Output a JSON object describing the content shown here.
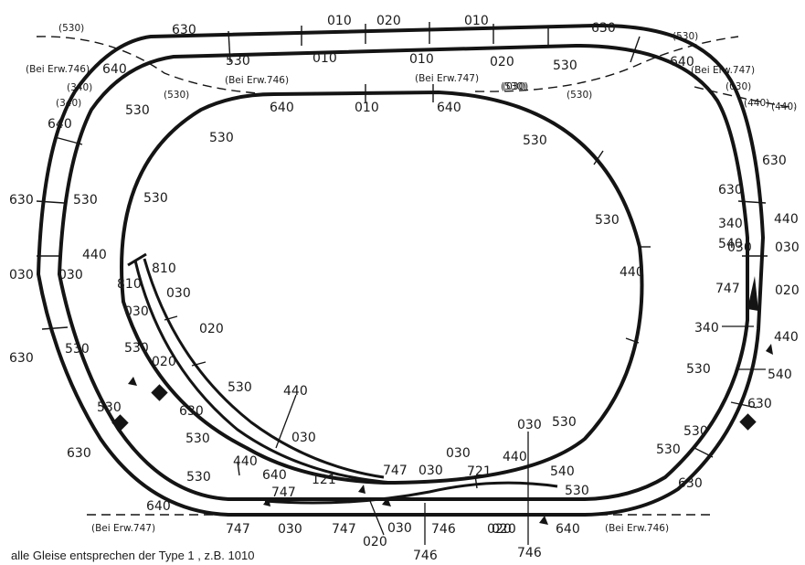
{
  "diagram": {
    "caption": "alle Gleise entsprechen der Type 1 , z.B. 1010",
    "note_labels": [
      "(530)",
      "(530)",
      "(530)",
      "(530)",
      "(530)",
      "(Bei Erw.746)",
      "(Bei Erw.746)",
      "(Bei Erw.746)",
      "(Bei Erw.747)",
      "(Bei Erw.747)",
      "(Bei Erw.747)",
      "(340)",
      "(340)",
      "(030)",
      "(030)",
      "(440)",
      "(440)"
    ],
    "track_labels": [
      "630",
      "010",
      "020",
      "010",
      "630",
      "640",
      "530",
      "010",
      "010",
      "020",
      "530",
      "640",
      "640",
      "640",
      "010",
      "640",
      "530",
      "530",
      "530",
      "530",
      "630",
      "530",
      "530",
      "630",
      "440",
      "030",
      "030",
      "030",
      "030",
      "440",
      "440",
      "810",
      "810",
      "030",
      "030",
      "020",
      "530",
      "530",
      "020",
      "630",
      "530",
      "440",
      "530",
      "030",
      "340",
      "747",
      "020",
      "340",
      "440",
      "540",
      "530",
      "530",
      "630",
      "530",
      "540",
      "630",
      "630",
      "630",
      "530",
      "440",
      "640",
      "121",
      "747",
      "747",
      "030",
      "721",
      "540",
      "530",
      "030",
      "530",
      "440",
      "030",
      "530",
      "640",
      "747",
      "020",
      "030",
      "746",
      "020",
      "640",
      "747",
      "030",
      "020",
      "746",
      "746",
      "630"
    ],
    "colors": {
      "track": "#141414",
      "paper": "#ffffff"
    }
  }
}
